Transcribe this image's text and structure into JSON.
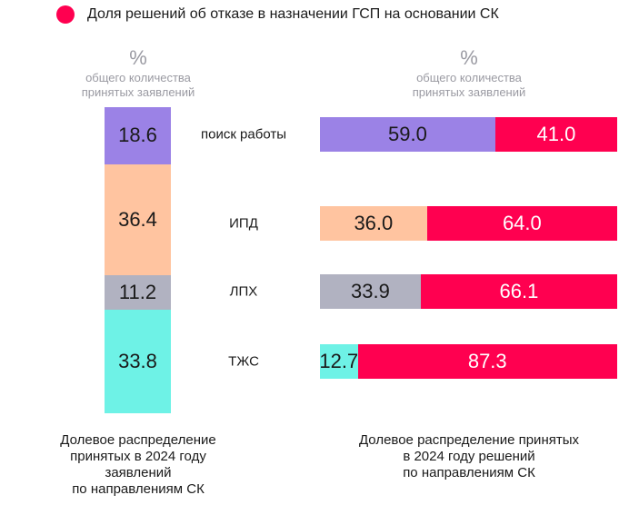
{
  "legend": {
    "label": "Доля решений об отказе в назначении ГСП на основании СК",
    "color": "#ff0050"
  },
  "unit_left": {
    "symbol": "%",
    "lines": [
      "общего количества",
      "принятых заявлений"
    ]
  },
  "unit_right": {
    "symbol": "%",
    "lines": [
      "общего количества",
      "принятых заявлений"
    ]
  },
  "caption_left": [
    "Долевое распределение",
    "принятых в 2024 году",
    "заявлений",
    "по направлениям СК"
  ],
  "caption_right": [
    "Долевое распределение принятых",
    "в 2024 году решений",
    "по направлениям СК"
  ],
  "chart_data": [
    {
      "type": "bar",
      "stacked": true,
      "orientation": "vertical",
      "unit": "%",
      "categories": [
        "поиск работы",
        "ИПД",
        "ЛПХ",
        "ТЖС"
      ],
      "values": [
        18.6,
        36.4,
        11.2,
        33.8
      ],
      "colors": [
        "#9b82e6",
        "#ffc4a0",
        "#b1b2c1",
        "#6ef2e6"
      ]
    },
    {
      "type": "bar",
      "stacked": true,
      "orientation": "horizontal",
      "unit": "%",
      "categories": [
        "поиск работы",
        "ИПД",
        "ЛПХ",
        "ТЖС"
      ],
      "series": [
        {
          "values": [
            59.0,
            36.0,
            33.9,
            12.7
          ],
          "colors": [
            "#9b82e6",
            "#ffc4a0",
            "#b1b2c1",
            "#6ef2e6"
          ]
        },
        {
          "name": "Доля решений об отказе в назначении ГСП на основании СК",
          "values": [
            41.0,
            64.0,
            66.1,
            87.3
          ],
          "color": "#ff0050"
        }
      ]
    }
  ]
}
